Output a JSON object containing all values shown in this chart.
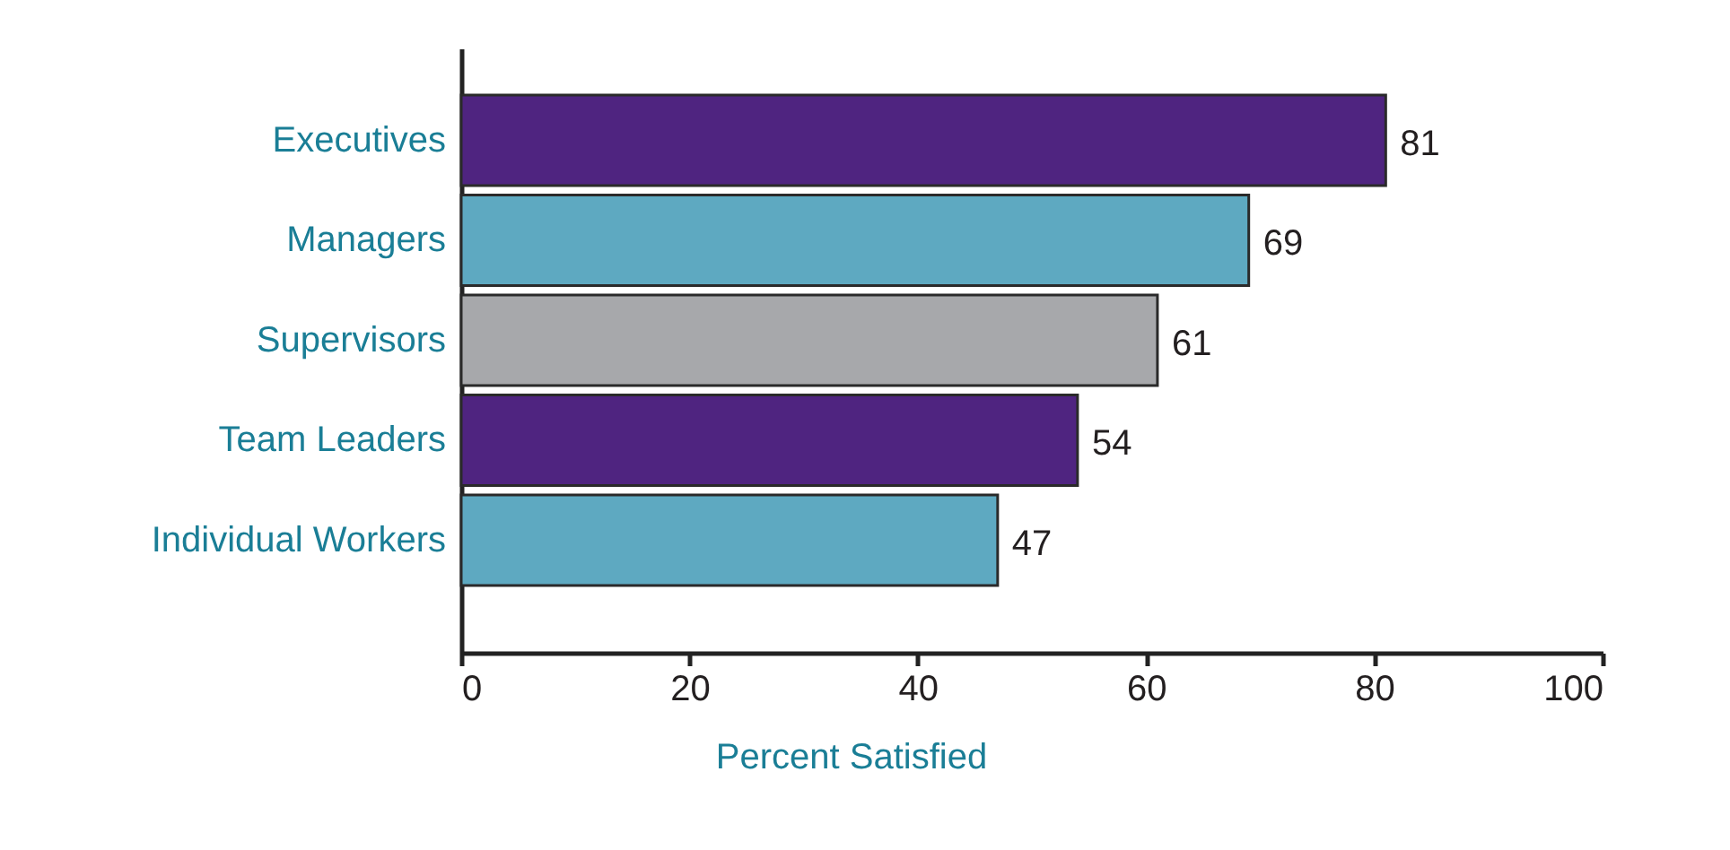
{
  "chart_data": {
    "type": "bar",
    "orientation": "horizontal",
    "categories": [
      "Executives",
      "Managers",
      "Supervisors",
      "Team Leaders",
      "Individual Workers"
    ],
    "values": [
      81,
      69,
      61,
      54,
      47
    ],
    "colors": [
      "#4f2480",
      "#5ea9c1",
      "#a7a8ab",
      "#4f2480",
      "#5ea9c1"
    ],
    "xlabel": "Percent Satisfied",
    "xlim": [
      0,
      100
    ],
    "xticks": [
      0,
      20,
      40,
      60,
      80,
      100
    ],
    "data_labels": true,
    "grid": false
  }
}
